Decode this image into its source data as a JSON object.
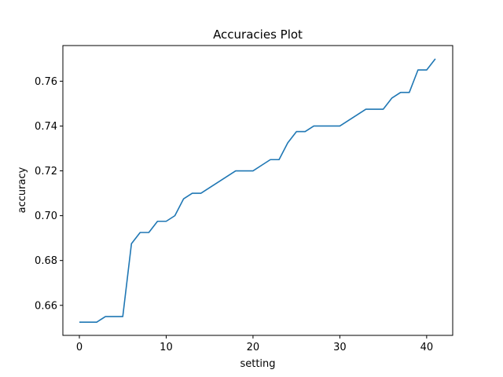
{
  "chart_data": {
    "type": "line",
    "title": "Accuracies Plot",
    "xlabel": "setting",
    "ylabel": "accuracy",
    "xlim": [
      -1.9,
      43.0
    ],
    "ylim": [
      0.6466,
      0.7759
    ],
    "x_ticks": [
      0,
      10,
      20,
      30,
      40
    ],
    "y_ticks": [
      0.66,
      0.68,
      0.7,
      0.72,
      0.74,
      0.76
    ],
    "y_tick_labels": [
      "0.66",
      "0.68",
      "0.70",
      "0.72",
      "0.74",
      "0.76"
    ],
    "grid": false,
    "line_color": "#1f77b4",
    "series": [
      {
        "x": [
          0,
          1,
          2,
          3,
          4,
          5,
          6,
          7,
          8,
          9,
          10,
          11,
          12,
          13,
          14,
          15,
          16,
          17,
          18,
          19,
          20,
          21,
          22,
          23,
          24,
          25,
          26,
          27,
          28,
          29,
          30,
          31,
          32,
          33,
          34,
          35,
          36,
          37,
          38,
          39,
          40,
          41
        ],
        "values": [
          0.6525,
          0.6525,
          0.6525,
          0.655,
          0.655,
          0.655,
          0.6875,
          0.6925,
          0.6925,
          0.6975,
          0.6975,
          0.7,
          0.7075,
          0.71,
          0.71,
          0.7125,
          0.715,
          0.7175,
          0.72,
          0.72,
          0.72,
          0.7225,
          0.725,
          0.725,
          0.7325,
          0.7375,
          0.7375,
          0.74,
          0.74,
          0.74,
          0.74,
          0.7425,
          0.745,
          0.7475,
          0.7475,
          0.7475,
          0.7525,
          0.755,
          0.755,
          0.765,
          0.765,
          0.77
        ]
      }
    ]
  }
}
